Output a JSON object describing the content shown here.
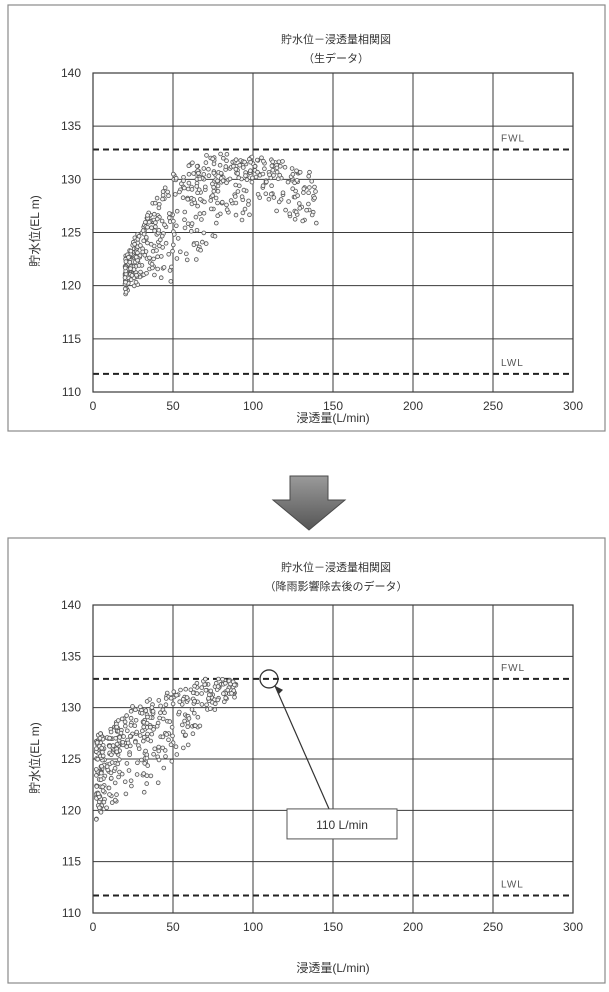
{
  "chart_data": [
    {
      "type": "scatter",
      "title": "貯水位－浸透量相関図",
      "subtitle": "（生データ）",
      "xlabel": "浸透量(L/min)",
      "ylabel": "貯水位(EL m)",
      "xlim": [
        0,
        300
      ],
      "ylim": [
        110,
        140
      ],
      "xticks": [
        0,
        50,
        100,
        150,
        200,
        250,
        300
      ],
      "yticks": [
        110,
        115,
        120,
        125,
        130,
        135,
        140
      ],
      "grid": true,
      "reference_lines": [
        {
          "label": "FWL",
          "y": 132.8
        },
        {
          "label": "LWL",
          "y": 111.7
        }
      ],
      "cloud": {
        "description_free": true,
        "bands": [
          [
            20,
            122.5
          ],
          [
            25,
            124
          ],
          [
            30,
            125.5
          ],
          [
            35,
            127
          ],
          [
            40,
            128.2
          ],
          [
            45,
            129.3
          ],
          [
            50,
            130.2
          ],
          [
            55,
            131
          ],
          [
            60,
            131.6
          ],
          [
            70,
            132.1
          ],
          [
            80,
            132.3
          ],
          [
            90,
            132.3
          ],
          [
            100,
            132.2
          ],
          [
            110,
            131.9
          ],
          [
            120,
            131.5
          ],
          [
            130,
            131
          ],
          [
            140,
            130.5
          ]
        ],
        "lower_edge": [
          [
            20,
            119
          ],
          [
            25,
            119.2
          ],
          [
            30,
            119.5
          ],
          [
            40,
            119.8
          ],
          [
            50,
            120.5
          ],
          [
            60,
            121.5
          ],
          [
            70,
            123
          ],
          [
            80,
            124.5
          ],
          [
            90,
            125.5
          ],
          [
            100,
            126.5
          ],
          [
            110,
            127
          ],
          [
            120,
            126
          ],
          [
            130,
            125.5
          ]
        ],
        "point_count": 520,
        "seed": 17
      }
    },
    {
      "type": "scatter",
      "title": "貯水位－浸透量相関図",
      "subtitle": "（降雨影響除去後のデータ）",
      "xlabel": "浸透量(L/min)",
      "ylabel": "貯水位(EL m)",
      "xlim": [
        0,
        300
      ],
      "ylim": [
        110,
        140
      ],
      "xticks": [
        0,
        50,
        100,
        150,
        200,
        250,
        300
      ],
      "yticks": [
        110,
        115,
        120,
        125,
        130,
        135,
        140
      ],
      "grid": true,
      "reference_lines": [
        {
          "label": "FWL",
          "y": 132.8
        },
        {
          "label": "LWL",
          "y": 111.7
        }
      ],
      "annotation": {
        "text": "110 L/min",
        "x": 110,
        "y": 132.8
      },
      "cloud": {
        "bands": [
          [
            2,
            127
          ],
          [
            5,
            127.5
          ],
          [
            10,
            128
          ],
          [
            15,
            128.8
          ],
          [
            20,
            129.5
          ],
          [
            30,
            130.5
          ],
          [
            40,
            131.2
          ],
          [
            50,
            131.8
          ],
          [
            60,
            132.3
          ],
          [
            70,
            132.6
          ],
          [
            80,
            132.7
          ],
          [
            90,
            132.7
          ]
        ],
        "lower_edge": [
          [
            2,
            119
          ],
          [
            5,
            119.2
          ],
          [
            10,
            119.5
          ],
          [
            15,
            120
          ],
          [
            20,
            120.5
          ],
          [
            30,
            121
          ],
          [
            40,
            122
          ],
          [
            50,
            124
          ],
          [
            60,
            126
          ],
          [
            70,
            128
          ],
          [
            80,
            129.5
          ],
          [
            90,
            131
          ]
        ],
        "point_count": 420,
        "seed": 31
      }
    }
  ],
  "arrow": {
    "icon": "down-arrow-icon",
    "color": "#6e6e6e"
  }
}
